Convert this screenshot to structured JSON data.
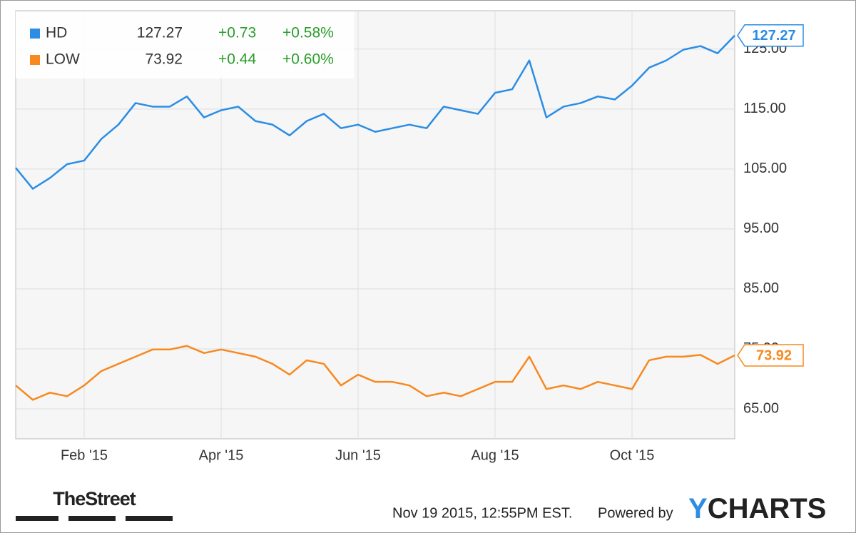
{
  "chart_data": {
    "type": "line",
    "categories": [
      null,
      null,
      null,
      null,
      "Feb '15",
      null,
      null,
      null,
      null,
      null,
      null,
      null,
      "Apr '15",
      null,
      null,
      null,
      null,
      null,
      null,
      null,
      "Jun '15",
      null,
      null,
      null,
      null,
      null,
      null,
      null,
      "Aug '15",
      null,
      null,
      null,
      null,
      null,
      null,
      null,
      "Oct '15",
      null,
      null,
      null,
      null,
      null,
      null
    ],
    "series": [
      {
        "name": "HD",
        "color": "#2b8de4",
        "change": "+0.73",
        "change_percent": "+0.58%",
        "values": [
          105.2,
          101.7,
          103.5,
          105.8,
          106.4,
          110,
          112.4,
          116,
          115.4,
          115.4,
          117.1,
          113.6,
          114.8,
          115.4,
          113,
          112.4,
          110.6,
          113,
          114.2,
          111.8,
          112.4,
          111.2,
          111.8,
          112.4,
          111.8,
          115.4,
          114.8,
          114.2,
          117.7,
          118.3,
          123.1,
          113.6,
          115.4,
          116,
          117.1,
          116.6,
          118.9,
          121.9,
          123.1,
          124.9,
          125.5,
          124.3,
          127.27
        ]
      },
      {
        "name": "LOW",
        "color": "#f7891f",
        "change": "+0.44",
        "change_percent": "+0.60%",
        "values": [
          68.9,
          66.5,
          67.7,
          67.1,
          68.9,
          71.3,
          72.5,
          73.7,
          74.9,
          74.9,
          75.5,
          74.3,
          74.9,
          74.3,
          73.7,
          72.5,
          70.7,
          73.1,
          72.5,
          68.9,
          70.7,
          69.5,
          69.5,
          68.9,
          67.1,
          67.7,
          67.1,
          68.3,
          69.5,
          69.5,
          73.7,
          68.3,
          68.9,
          68.3,
          69.5,
          68.9,
          68.3,
          73.1,
          73.7,
          73.7,
          74,
          72.5,
          73.92
        ]
      }
    ],
    "ylim": [
      60,
      131.4
    ],
    "yticks": [
      {
        "value": 65,
        "label": "65.00"
      },
      {
        "value": 75,
        "label": "75.00"
      },
      {
        "value": 85,
        "label": "85.00"
      },
      {
        "value": 95,
        "label": "95.00"
      },
      {
        "value": 105,
        "label": "105.00"
      },
      {
        "value": 115,
        "label": "115.00"
      },
      {
        "value": 125,
        "label": "125.00"
      }
    ],
    "grid": true
  },
  "footer": {
    "publisher": "TheStreet",
    "timestamp": "Nov 19 2015, 12:55PM EST.",
    "powered_by": "Powered by",
    "brand": {
      "first": "Y",
      "rest": "CHARTS"
    }
  }
}
